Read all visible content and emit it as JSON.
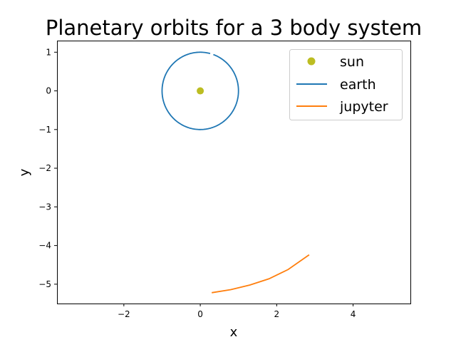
{
  "chart_data": {
    "type": "line",
    "title": "Planetary orbits for a 3 body system",
    "xlabel": "x",
    "ylabel": "y",
    "xlim": [
      -3.75,
      5.5
    ],
    "ylim": [
      -5.5,
      1.3
    ],
    "xticks": [
      -2,
      0,
      2,
      4
    ],
    "xtick_labels": [
      "−2",
      "0",
      "2",
      "4"
    ],
    "yticks": [
      1,
      0,
      -1,
      -2,
      -3,
      -4,
      -5
    ],
    "ytick_labels": [
      "1",
      "0",
      "−1",
      "−2",
      "−3",
      "−4",
      "−5"
    ],
    "grid": false,
    "legend_position": "top-right",
    "series": [
      {
        "name": "sun",
        "kind": "marker",
        "color": "#bcbd22",
        "points": [
          [
            0,
            0
          ]
        ]
      },
      {
        "name": "earth",
        "kind": "line",
        "color": "#1f77b4",
        "orbit": {
          "center": [
            0,
            0
          ],
          "radius": 1.0,
          "start_angle_deg": 75,
          "sweep_deg": 355
        }
      },
      {
        "name": "jupyter",
        "kind": "line",
        "color": "#ff7f0e",
        "points": [
          [
            0.3,
            -5.22
          ],
          [
            0.8,
            -5.14
          ],
          [
            1.3,
            -5.02
          ],
          [
            1.8,
            -4.86
          ],
          [
            2.3,
            -4.62
          ],
          [
            2.85,
            -4.24
          ]
        ]
      }
    ]
  }
}
